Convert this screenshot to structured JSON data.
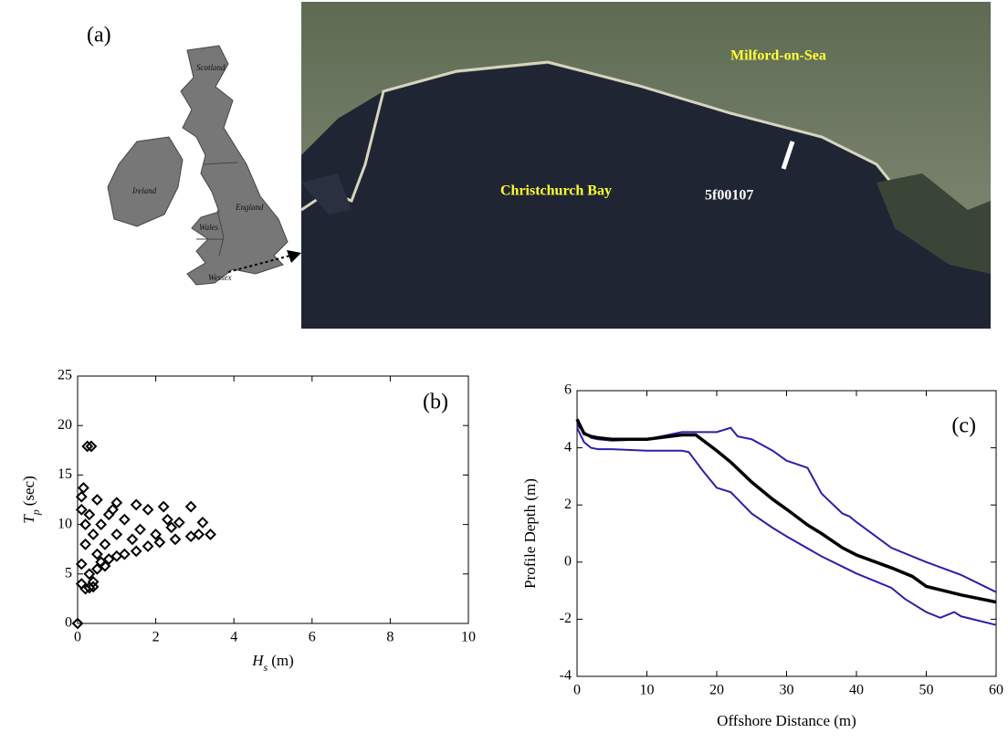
{
  "map": {
    "label": "(a)",
    "regions": [
      "Scotland",
      "Ireland",
      "Wales",
      "England",
      "Wessex"
    ],
    "places": [
      "Milford-on-Sea",
      "Christchurch Bay",
      "5f00107"
    ]
  },
  "chart_data": [
    {
      "type": "scatter",
      "annotation": "(b)",
      "x_label": "H",
      "x_label_sub": "s",
      "x_label_unit": "(m)",
      "y_label": "T",
      "y_label_sub": "p",
      "y_label_unit": "(sec)",
      "color": "#000000",
      "xlim": [
        0,
        10
      ],
      "xticks": [
        0,
        2,
        4,
        6,
        8,
        10
      ],
      "ylim": [
        0,
        25
      ],
      "yticks": [
        0,
        5,
        10,
        15,
        20,
        25
      ],
      "x": [
        0.1,
        0.2,
        0.3,
        0.4,
        0.1,
        0.3,
        0.5,
        0.6,
        0.8,
        1.0,
        1.2,
        1.5,
        1.8,
        2.1,
        2.5,
        2.9,
        3.1,
        3.4,
        3.2,
        2.9,
        2.2,
        1.5,
        1.0,
        0.5,
        0.1,
        0.15,
        0.25,
        0.35,
        0,
        0.2,
        0.4,
        0.6,
        0.8,
        1.2,
        1.6,
        2.0,
        2.4,
        2.6,
        0.3,
        0.7,
        1.0,
        1.4,
        0.5,
        0.2,
        0.9,
        1.8,
        2.3,
        0.1,
        0.4,
        0.7
      ],
      "values": [
        4,
        3.5,
        3.6,
        3.7,
        6,
        5,
        5.5,
        6.2,
        6.5,
        6.8,
        7,
        7.3,
        7.8,
        8.2,
        8.5,
        8.8,
        9,
        9,
        10.2,
        11.8,
        11.8,
        12,
        12.2,
        12.5,
        12.8,
        13.7,
        17.9,
        17.9,
        0,
        8,
        9,
        10,
        11,
        10.5,
        9.5,
        9,
        9.7,
        10.2,
        11,
        8,
        9,
        8.5,
        7,
        10,
        11.5,
        11.5,
        10.5,
        11.5,
        4.2,
        5.8
      ]
    },
    {
      "type": "line",
      "annotation": "(c)",
      "x_label": "Offshore Distance (m)",
      "y_label": "Profile Depth (m)",
      "xlim": [
        0,
        60
      ],
      "xticks": [
        0,
        10,
        20,
        30,
        40,
        50,
        60
      ],
      "ylim": [
        -4,
        6
      ],
      "yticks": [
        -4,
        -2,
        0,
        2,
        4,
        6
      ],
      "series": [
        {
          "color": "#2a1fa8",
          "x": [
            0,
            1,
            2,
            3,
            5,
            10,
            15,
            20,
            22,
            23,
            25,
            28,
            30,
            33,
            35,
            38,
            39,
            40,
            45,
            50,
            55,
            60
          ],
          "values": [
            4.8,
            4.55,
            4.35,
            4.3,
            4.25,
            4.3,
            4.55,
            4.55,
            4.7,
            4.4,
            4.3,
            3.9,
            3.55,
            3.3,
            2.4,
            1.7,
            1.6,
            1.4,
            0.5,
            0.0,
            -0.45,
            -1.05
          ]
        },
        {
          "color": "#2a1fa8",
          "x": [
            0,
            1,
            2,
            3,
            5,
            10,
            15,
            16,
            18,
            20,
            22,
            23,
            25,
            28,
            30,
            35,
            40,
            45,
            47,
            50,
            52,
            54,
            55,
            60
          ],
          "values": [
            4.7,
            4.2,
            4.0,
            3.95,
            3.95,
            3.9,
            3.9,
            3.85,
            3.2,
            2.6,
            2.45,
            2.2,
            1.7,
            1.2,
            0.9,
            0.2,
            -0.4,
            -0.9,
            -1.3,
            -1.75,
            -1.95,
            -1.75,
            -1.9,
            -2.2
          ]
        },
        {
          "color": "#000000",
          "x": [
            0,
            1,
            2,
            3,
            5,
            10,
            15,
            17,
            20,
            22,
            25,
            28,
            30,
            33,
            35,
            38,
            40,
            45,
            48,
            50,
            55,
            60
          ],
          "values": [
            5.0,
            4.5,
            4.4,
            4.35,
            4.3,
            4.3,
            4.45,
            4.45,
            3.9,
            3.5,
            2.8,
            2.2,
            1.85,
            1.3,
            1.0,
            0.5,
            0.25,
            -0.2,
            -0.5,
            -0.85,
            -1.15,
            -1.4
          ]
        }
      ]
    }
  ]
}
